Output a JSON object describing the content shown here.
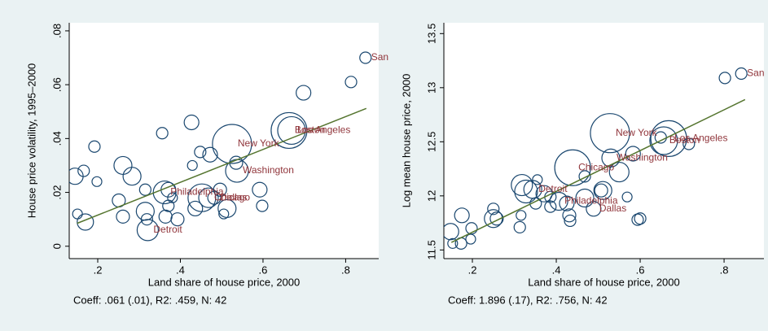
{
  "chart_data": [
    {
      "type": "scatter",
      "xlabel": "Land share of house price, 2000",
      "ylabel": "House price volatility, 1995–2000",
      "note": "Coeff: .061 (.01), R2: .459, N: 42",
      "xlim": [
        0.131,
        0.88
      ],
      "ylim": [
        -0.0046,
        0.083
      ],
      "xticks": [
        {
          "value": 0.2,
          "label": ".2"
        },
        {
          "value": 0.4,
          "label": ".4"
        },
        {
          "value": 0.6,
          "label": ".6"
        },
        {
          "value": 0.8,
          "label": ".8"
        }
      ],
      "yticks": [
        0,
        {
          "value": 0.02,
          "label": ".02"
        },
        {
          "value": 0.04,
          "label": ".04"
        },
        {
          "value": 0.06,
          "label": ".06"
        },
        {
          "value": 0.08,
          "label": ".08"
        }
      ],
      "series": [
        {
          "color": "#1a476f",
          "label_color": "#90353b",
          "x": [
            0.145,
            0.151,
            0.166,
            0.17,
            0.192,
            0.198,
            0.251,
            0.261,
            0.261,
            0.283,
            0.315,
            0.315,
            0.319,
            0.321,
            0.356,
            0.362,
            0.371,
            0.364,
            0.371,
            0.393,
            0.427,
            0.429,
            0.436,
            0.448,
            0.472,
            0.452,
            0.468,
            0.482,
            0.496,
            0.513,
            0.525,
            0.537,
            0.535,
            0.592,
            0.598,
            0.663,
            0.669,
            0.698,
            0.813,
            0.848,
            0.381,
            0.505
          ],
          "y": [
            0.026,
            0.012,
            0.028,
            0.009,
            0.037,
            0.024,
            0.017,
            0.03,
            0.011,
            0.026,
            0.021,
            0.013,
            0.01,
            0.006,
            0.042,
            0.02,
            0.021,
            0.011,
            0.015,
            0.01,
            0.046,
            0.03,
            0.014,
            0.035,
            0.034,
            0.018,
            0.018,
            0.018,
            0.021,
            0.014,
            0.038,
            0.028,
            0.031,
            0.021,
            0.015,
            0.043,
            0.043,
            0.057,
            0.061,
            0.07,
            0.018,
            0.012
          ],
          "sizes": [
            10,
            6,
            7,
            10,
            7,
            6,
            8,
            11,
            8,
            11,
            7,
            11,
            7,
            13,
            7,
            14,
            9,
            8,
            7,
            8,
            9,
            6,
            9,
            7,
            9,
            17,
            12,
            8,
            8,
            11,
            24,
            14,
            8,
            9,
            7,
            22,
            17,
            9,
            7,
            7,
            6,
            6
          ],
          "point_labels": [
            null,
            null,
            null,
            null,
            null,
            null,
            null,
            null,
            null,
            null,
            null,
            null,
            null,
            "Detroit",
            null,
            "Philadelphia",
            null,
            null,
            null,
            null,
            null,
            null,
            null,
            null,
            null,
            null,
            "Chicago",
            "Dallas",
            null,
            null,
            "New York",
            "Washington",
            null,
            null,
            null,
            "Boston",
            "Los Angeles",
            null,
            null,
            "San",
            null,
            null
          ]
        }
      ],
      "fit": {
        "color": "#55752f",
        "x": [
          0.15,
          0.85
        ],
        "y": [
          0.0085,
          0.0512
        ]
      }
    },
    {
      "type": "scatter",
      "xlabel": "Land share of house price, 2000",
      "ylabel": "Log mean house price, 2000",
      "note": "Coeff: 1.896 (.17), R2: .756, N: 42",
      "xlim": [
        0.132,
        0.895
      ],
      "ylim": [
        11.42,
        13.6
      ],
      "xticks": [
        {
          "value": 0.2,
          "label": ".2"
        },
        {
          "value": 0.4,
          "label": ".4"
        },
        {
          "value": 0.6,
          "label": ".6"
        },
        {
          "value": 0.8,
          "label": ".8"
        }
      ],
      "yticks": [
        11.5,
        12,
        12.5,
        13,
        13.5
      ],
      "series": [
        {
          "color": "#1a476f",
          "label_color": "#90353b",
          "x": [
            0.148,
            0.153,
            0.173,
            0.196,
            0.198,
            0.175,
            0.25,
            0.258,
            0.25,
            0.313,
            0.316,
            0.318,
            0.328,
            0.344,
            0.355,
            0.351,
            0.371,
            0.386,
            0.386,
            0.406,
            0.425,
            0.431,
            0.433,
            0.439,
            0.468,
            0.468,
            0.489,
            0.507,
            0.511,
            0.53,
            0.528,
            0.55,
            0.583,
            0.594,
            0.6,
            0.649,
            0.656,
            0.668,
            0.716,
            0.802,
            0.841,
            0.569
          ],
          "y": [
            11.67,
            11.56,
            11.56,
            11.6,
            11.7,
            11.82,
            11.88,
            11.79,
            11.79,
            11.71,
            11.82,
            12.1,
            12.04,
            12.06,
            12.15,
            11.93,
            12.02,
            11.99,
            11.9,
            11.95,
            11.93,
            11.82,
            11.77,
            12.26,
            12.18,
            11.98,
            11.88,
            12.05,
            12.05,
            12.35,
            12.58,
            12.22,
            12.39,
            11.78,
            11.79,
            12.54,
            12.51,
            12.53,
            12.48,
            13.09,
            13.13,
            11.99
          ],
          "sizes": [
            10,
            6,
            7,
            6,
            7,
            9,
            7,
            8,
            11,
            7,
            6,
            13,
            14,
            11,
            6,
            7,
            10,
            7,
            7,
            11,
            9,
            8,
            7,
            22,
            7,
            11,
            9,
            8,
            11,
            11,
            24,
            12,
            9,
            7,
            7,
            7,
            17,
            22,
            7,
            7,
            7,
            6
          ],
          "point_labels": [
            null,
            null,
            null,
            null,
            null,
            null,
            null,
            null,
            null,
            null,
            null,
            null,
            null,
            "Detroit",
            null,
            null,
            null,
            null,
            null,
            "Philadelphia",
            null,
            null,
            null,
            "Chicago",
            null,
            null,
            "Dallas",
            null,
            null,
            "Washington",
            "New York",
            null,
            null,
            null,
            null,
            null,
            "Boston",
            "Los Angeles",
            null,
            null,
            "San",
            null
          ]
        }
      ],
      "fit": {
        "color": "#55752f",
        "x": [
          0.15,
          0.85
        ],
        "y": [
          11.57,
          12.89
        ]
      }
    }
  ]
}
